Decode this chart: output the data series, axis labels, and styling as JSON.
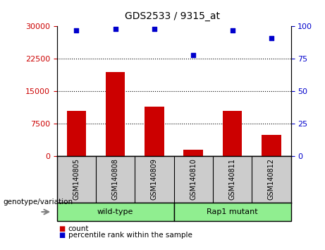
{
  "title": "GDS2533 / 9315_at",
  "samples": [
    "GSM140805",
    "GSM140808",
    "GSM140809",
    "GSM140810",
    "GSM140811",
    "GSM140812"
  ],
  "counts": [
    10500,
    19500,
    11500,
    1500,
    10500,
    5000
  ],
  "percentile_ranks": [
    97,
    98,
    98,
    78,
    97,
    91
  ],
  "ylim_left": [
    0,
    30000
  ],
  "ylim_right": [
    0,
    100
  ],
  "yticks_left": [
    0,
    7500,
    15000,
    22500,
    30000
  ],
  "yticks_right": [
    0,
    25,
    50,
    75,
    100
  ],
  "bar_color": "#cc0000",
  "dot_color": "#0000cc",
  "group_color": "#90ee90",
  "gray_color": "#cccccc",
  "group_label": "genotype/variation",
  "groups": [
    {
      "label": "wild-type",
      "start": 0,
      "end": 3
    },
    {
      "label": "Rap1 mutant",
      "start": 3,
      "end": 6
    }
  ],
  "legend_items": [
    {
      "label": "count",
      "color": "#cc0000"
    },
    {
      "label": "percentile rank within the sample",
      "color": "#0000cc"
    }
  ],
  "background_color": "#ffffff"
}
